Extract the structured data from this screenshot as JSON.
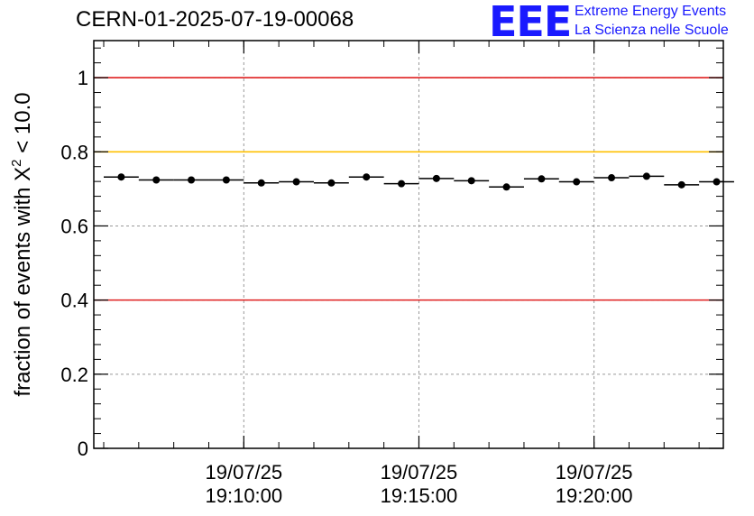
{
  "header": {
    "title": "CERN-01-2025-07-19-00068",
    "logo_mark": "EEE",
    "logo_line1": "Extreme Energy Events",
    "logo_line2": "La Scienza nelle Scuole"
  },
  "chart_data": {
    "type": "scatter",
    "title": "CERN-01-2025-07-19-00068",
    "xlabel": "",
    "ylabel_prefix": "fraction of events with ",
    "ylabel_symbol": "X",
    "ylabel_superscript": "2",
    "ylabel_suffix": " < 10.0",
    "ylim": [
      0,
      1.1
    ],
    "yticks": [
      {
        "value": 0,
        "label": "0"
      },
      {
        "value": 0.2,
        "label": "0.2"
      },
      {
        "value": 0.4,
        "label": "0.4"
      },
      {
        "value": 0.6,
        "label": "0.6"
      },
      {
        "value": 0.8,
        "label": "0.8"
      },
      {
        "value": 1,
        "label": "1"
      }
    ],
    "xlim_seconds": [
      0,
      1060
    ],
    "xticks": [
      {
        "t": 240,
        "date": "19/07/25",
        "time": "19:10:00"
      },
      {
        "t": 540,
        "date": "19/07/25",
        "time": "19:15:00"
      },
      {
        "t": 840,
        "date": "19/07/25",
        "time": "19:20:00"
      }
    ],
    "grid": true,
    "reference_lines": [
      {
        "value": 1.0,
        "color": "#e02020"
      },
      {
        "value": 0.8,
        "color": "#ffc000"
      },
      {
        "value": 0.4,
        "color": "#e02020"
      }
    ],
    "bin_width_seconds": 60,
    "series": [
      {
        "name": "fraction",
        "x_seconds": [
          30,
          90,
          150,
          210,
          270,
          330,
          390,
          450,
          510,
          570,
          630,
          690,
          750,
          810,
          870,
          930,
          990,
          1050
        ],
        "values": [
          0.732,
          0.724,
          0.724,
          0.724,
          0.716,
          0.719,
          0.716,
          0.732,
          0.714,
          0.728,
          0.722,
          0.705,
          0.727,
          0.719,
          0.73,
          0.734,
          0.711,
          0.719
        ]
      }
    ]
  }
}
